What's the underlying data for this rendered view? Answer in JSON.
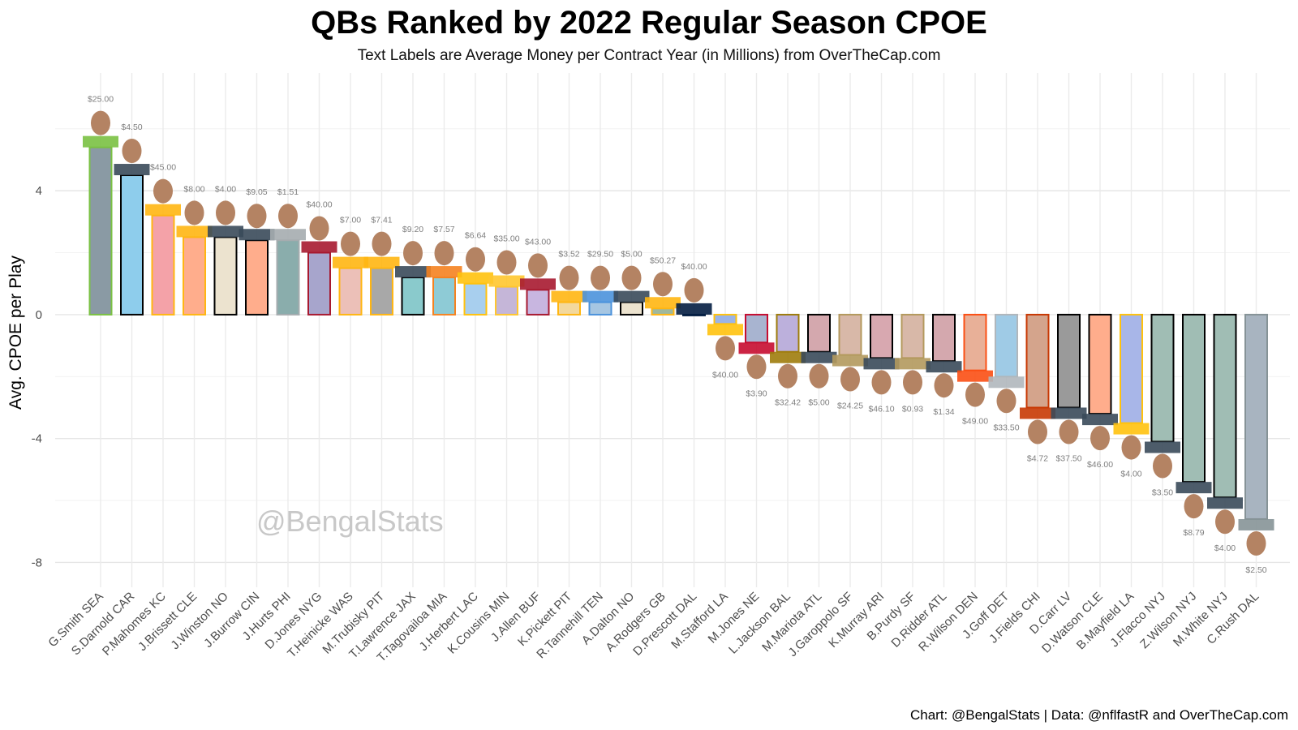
{
  "title": "QBs Ranked by 2022 Regular Season CPOE",
  "subtitle": "Text Labels are Average Money per Contract Year (in Millions) from OverTheCap.com",
  "caption": "Chart: @BengalStats | Data: @nflfastR and OverTheCap.com",
  "watermark": "@BengalStats",
  "chart_data": {
    "type": "bar",
    "title": "QBs Ranked by 2022 Regular Season CPOE",
    "ylabel": "Avg. CPOE per Play",
    "xlabel": "",
    "ylim": [
      -8.8,
      7.8
    ],
    "yticks": [
      4,
      0,
      -4,
      -8
    ],
    "ytick_labels": [
      "4",
      "0",
      "-4",
      "-8"
    ],
    "grid": true,
    "categories": [
      "G.Smith SEA",
      "S.Darnold CAR",
      "P.Mahomes KC",
      "J.Brissett CLE",
      "J.Winston NO",
      "J.Burrow CIN",
      "J.Hurts PHI",
      "D.Jones NYG",
      "T.Heinicke WAS",
      "M.Trubisky PIT",
      "T.Lawrence JAX",
      "T.Tagovailoa MIA",
      "J.Herbert LAC",
      "K.Cousins MIN",
      "J.Allen BUF",
      "K.Pickett PIT",
      "R.Tannehill TEN",
      "A.Dalton NO",
      "A.Rodgers GB",
      "D.Prescott DAL",
      "M.Stafford LA",
      "M.Jones NE",
      "L.Jackson BAL",
      "M.Mariota ATL",
      "J.Garoppolo SF",
      "K.Murray ARI",
      "B.Purdy SF",
      "D.Ridder ATL",
      "R.Wilson DEN",
      "J.Goff DET",
      "J.Fields CHI",
      "D.Carr LV",
      "D.Watson CLE",
      "B.Mayfield LA",
      "J.Flacco NYJ",
      "Z.Wilson NYJ",
      "M.White NYJ",
      "C.Rush DAL"
    ],
    "values": [
      5.4,
      4.5,
      3.2,
      2.5,
      2.5,
      2.4,
      2.4,
      2.0,
      1.5,
      1.5,
      1.2,
      1.2,
      1.0,
      0.9,
      0.8,
      0.4,
      0.4,
      0.4,
      0.2,
      0.0,
      -0.3,
      -0.9,
      -1.2,
      -1.2,
      -1.3,
      -1.4,
      -1.4,
      -1.5,
      -1.8,
      -2.0,
      -3.0,
      -3.0,
      -3.2,
      -3.5,
      -4.1,
      -5.4,
      -5.9,
      -6.6
    ],
    "salary_labels": [
      "$25.00",
      "$4.50",
      "$45.00",
      "$8.00",
      "$4.00",
      "$9.05",
      "$1.51",
      "$40.00",
      "$7.00",
      "$7.41",
      "$9.20",
      "$7.57",
      "$6.64",
      "$35.00",
      "$43.00",
      "$3.52",
      "$29.50",
      "$5.00",
      "$50.27",
      "$40.00",
      "$40.00",
      "$3.90",
      "$32.42",
      "$5.00",
      "$24.25",
      "$46.10",
      "$0.93",
      "$1.34",
      "$49.00",
      "$33.50",
      "$4.72",
      "$37.50",
      "$46.00",
      "$4.00",
      "$3.50",
      "$8.79",
      "$4.00",
      "$2.50"
    ],
    "team_colors": [
      "#8a9aa4",
      "#8ecdec",
      "#f4a2a8",
      "#ffad8c",
      "#ece3cf",
      "#ffad8c",
      "#8aadac",
      "#a7a5cc",
      "#ecc0b8",
      "#a8a8a8",
      "#8acacc",
      "#8ecbd6",
      "#a8cfee",
      "#c5b6d8",
      "#c8b6e0",
      "#f3d89c",
      "#a6c6e2",
      "#ece3cf",
      "#a0b89c",
      "#aab6c8",
      "#9ab4e8",
      "#a8b4d0",
      "#bcb0dc",
      "#d4a8ae",
      "#d8b8a8",
      "#d8a8b0",
      "#d8b8a8",
      "#d4a8ae",
      "#e8b098",
      "#9fcbe6",
      "#d4a48c",
      "#9a9a9a",
      "#ffad8c",
      "#a8b6e8",
      "#a0bdb4",
      "#a0bdb4",
      "#a0bdb4",
      "#a8b4c0"
    ],
    "team_outlines": [
      "#7ac142",
      "#000000",
      "#ffb612",
      "#ffb612",
      "#000000",
      "#000000",
      "#a5acaf",
      "#a71930",
      "#ffb612",
      "#ffb612",
      "#000000",
      "#f58220",
      "#ffc20e",
      "#ffc62f",
      "#a71930",
      "#ffb612",
      "#4b92db",
      "#000000",
      "#ffb612",
      "#041e42",
      "#ffc20e",
      "#c60c30",
      "#9e7c0c",
      "#000000",
      "#b3995d",
      "#000000",
      "#b3995d",
      "#000000",
      "#fb4f14",
      "#b0b7bc",
      "#c83803",
      "#000000",
      "#000000",
      "#ffc20e",
      "#000000",
      "#000000",
      "#000000",
      "#869397"
    ]
  }
}
